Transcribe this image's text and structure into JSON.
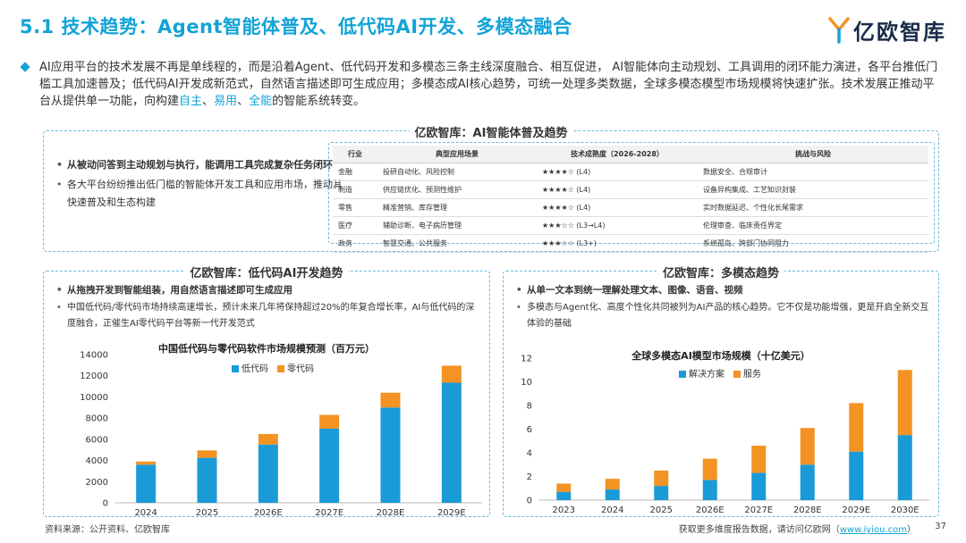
{
  "header": {
    "title": "5.1 技术趋势：Agent智能体普及、低代码AI开发、多模态融合",
    "logo_text": "亿欧智库"
  },
  "intro": {
    "text_main": "AI应用平台的技术发展不再是单线程的，而是沿着Agent、低代码开发和多模态三条主线深度融合、相互促进， AI智能体向主动规划、工具调用的闭环能力演进，各平台推低门槛工具加速普及；低代码AI开发成新范式，自然语言描述即可生成应用；多模态成AI核心趋势，可统一处理多类数据，全球多模态模型市场规模将快速扩张。技术发展正推动平台从提供单一功能，向构建",
    "hl1": "自主",
    "sep1": "、",
    "hl2": "易用",
    "sep2": "、",
    "hl3": "全能",
    "text_end": "的智能系统转变。"
  },
  "agent_panel": {
    "title": "亿欧智库：AI智能体普及趋势",
    "bullets": [
      "从被动问答到主动规划与执行，能调用工具完成复杂任务闭环",
      "各大平台纷纷推出低门槛的智能体开发工具和应用市场，推动其快速普及和生态构建"
    ],
    "table": {
      "headers": [
        "行业",
        "典型应用场景",
        "技术成熟度（2026-2028）",
        "挑战与风险"
      ],
      "rows": [
        [
          "金融",
          "投研自动化、风险控制",
          "★★★★☆ (L4)",
          "数据安全、合规审计"
        ],
        [
          "制造",
          "供应链优化、预测性维护",
          "★★★★☆ (L4)",
          "设备异构集成、工艺知识封装"
        ],
        [
          "零售",
          "精准营销、库存管理",
          "★★★★☆ (L4)",
          "实时数据延迟、个性化长尾需求"
        ],
        [
          "医疗",
          "辅助诊断、电子病历管理",
          "★★★☆☆ (L3→L4)",
          "伦理审查、临床责任界定"
        ],
        [
          "政务",
          "智慧交通、公共服务",
          "★★★☆☆ (L3+)",
          "系统孤岛、跨部门协同阻力"
        ]
      ]
    }
  },
  "lowcode_panel": {
    "title": "亿欧智库：低代码AI开发趋势",
    "bullet_bold": "从拖拽开发到智能组装，用自然语言描述即可生成应用",
    "bullet_normal": "中国低代码/零代码市场持续高速增长，预计未来几年将保持超过20%的年复合增长率，AI与低代码的深度融合，正催生AI零代码平台等新一代开发范式"
  },
  "multimodal_panel": {
    "title": "亿欧智库：多模态趋势",
    "bullet_bold": "从单一文本到统一理解处理文本、图像、语音、视频",
    "bullet_normal": "多模态与Agent化、高度个性化共同被列为AI产品的核心趋势。它不仅是功能增强，更是开启全新交互体验的基础"
  },
  "chart_data": [
    {
      "type": "bar",
      "stacked": true,
      "title": "中国低代码与零代码软件市场规模预测（百万元）",
      "categories": [
        "2024",
        "2025",
        "2026E",
        "2027E",
        "2028E",
        "2029E"
      ],
      "series": [
        {
          "name": "低代码",
          "color": "#1a9bd7",
          "values": [
            3600,
            4250,
            5500,
            7000,
            9000,
            11350
          ]
        },
        {
          "name": "零代码",
          "color": "#f39323",
          "values": [
            300,
            700,
            1000,
            1300,
            1400,
            1600
          ]
        }
      ],
      "ylim": [
        0,
        14000
      ],
      "yticks": [
        0,
        2000,
        4000,
        6000,
        8000,
        10000,
        12000,
        14000
      ],
      "legend": "top"
    },
    {
      "type": "bar",
      "stacked": true,
      "title": "全球多模态AI模型市场规模（十亿美元）",
      "categories": [
        "2023",
        "2024",
        "2025",
        "2026E",
        "2027E",
        "2028E",
        "2029E",
        "2030E"
      ],
      "series": [
        {
          "name": "解决方案",
          "color": "#1a9bd7",
          "values": [
            0.7,
            0.9,
            1.2,
            1.7,
            2.3,
            3.0,
            4.1,
            5.5
          ]
        },
        {
          "name": "服务",
          "color": "#f39323",
          "values": [
            0.7,
            0.9,
            1.3,
            1.8,
            2.3,
            3.1,
            4.1,
            5.5
          ]
        }
      ],
      "ylim": [
        0,
        12
      ],
      "yticks": [
        0,
        2,
        4,
        6,
        8,
        10,
        12
      ],
      "legend": "top"
    }
  ],
  "footer": {
    "source": "资料来源：公开资料、亿欧智库",
    "more_text": "获取更多维度报告数据，请访问亿欧网（",
    "link": "www.iyiou.com",
    "more_end": "）",
    "page": "37"
  }
}
